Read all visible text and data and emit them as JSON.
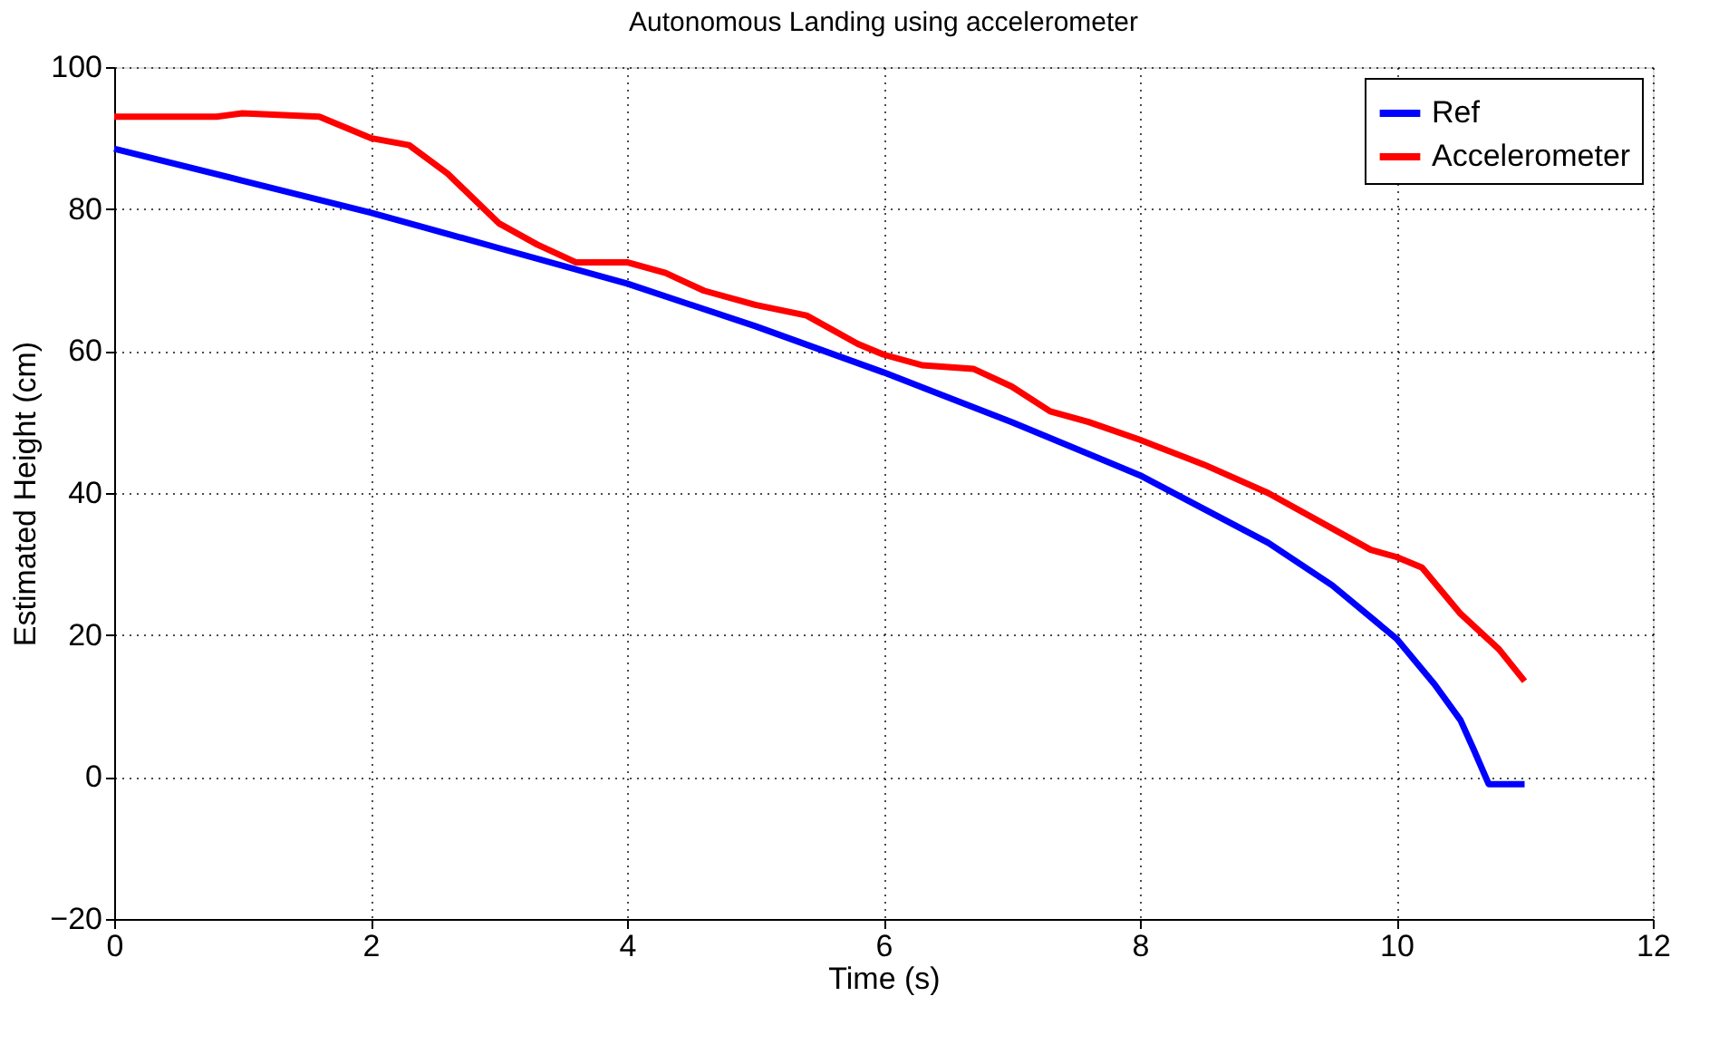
{
  "chart_data": {
    "type": "line",
    "title": "Autonomous Landing using accelerometer",
    "xlabel": "Time (s)",
    "ylabel": "Estimated Height (cm)",
    "xlim": [
      0,
      12
    ],
    "xticks": [
      0,
      2,
      4,
      6,
      8,
      10,
      12
    ],
    "ylim": [
      -20,
      100
    ],
    "yticks": [
      -20,
      0,
      20,
      40,
      60,
      80,
      100
    ],
    "grid": true,
    "legend": "top right",
    "line_style": "solid",
    "marker": "none",
    "series": [
      {
        "name": "Ref",
        "color": "#0000ff",
        "x": [
          0,
          1,
          2,
          3,
          4,
          5,
          6,
          7,
          8,
          9,
          9.5,
          10,
          10.3,
          10.5,
          10.6,
          10.72,
          11
        ],
        "values": [
          88.5,
          84,
          79.5,
          74.5,
          69.5,
          63.5,
          57,
          50,
          42.5,
          33,
          27,
          19.5,
          13,
          8,
          4,
          -1,
          -1
        ]
      },
      {
        "name": "Accelerometer",
        "color": "#ff0000",
        "x": [
          0,
          0.8,
          1,
          1.6,
          2,
          2.3,
          2.6,
          3,
          3.3,
          3.6,
          4,
          4.3,
          4.6,
          5,
          5.4,
          5.8,
          6,
          6.3,
          6.7,
          7,
          7.3,
          7.6,
          8,
          8.5,
          9,
          9.5,
          9.8,
          10,
          10.2,
          10.5,
          10.8,
          11
        ],
        "values": [
          93,
          93,
          93.5,
          93,
          90,
          89,
          85,
          78,
          75,
          72.5,
          72.5,
          71,
          68.5,
          66.5,
          65,
          61,
          59.5,
          58,
          57.5,
          55,
          51.5,
          50,
          47.5,
          44,
          40,
          35,
          32,
          31,
          29.5,
          23,
          18,
          13.5
        ]
      }
    ]
  }
}
